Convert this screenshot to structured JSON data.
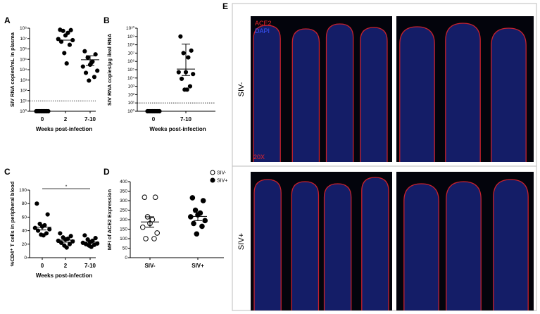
{
  "panels": {
    "A": "A",
    "B": "B",
    "C": "C",
    "D": "D",
    "E": "E"
  },
  "chart_data": [
    {
      "id": "A",
      "type": "scatter",
      "ylabel": "SIV RNA copies/mL in plasma",
      "xlabel": "Weeks post-infection",
      "yscale": "log",
      "ylim_exp": [
        0,
        8
      ],
      "ytick_labels": [
        "10⁰",
        "10¹",
        "10²",
        "10³",
        "10⁴",
        "10⁵",
        "10⁶",
        "10⁷",
        "10⁸"
      ],
      "categories": [
        "0",
        "2",
        "7-10"
      ],
      "series": [
        {
          "category": "0",
          "values": [
            1,
            1,
            1,
            1,
            1,
            1,
            1,
            1,
            1,
            1,
            1
          ],
          "mean": 1
        },
        {
          "category": "2",
          "values": [
            70000000.0,
            65000000.0,
            55000000.0,
            35000000.0,
            20000000.0,
            9000000.0,
            7000000.0,
            5000000.0,
            2500000.0,
            400000.0,
            40000.0
          ],
          "mean": 7000000.0
        },
        {
          "category": "7-10",
          "values": [
            600000.0,
            300000.0,
            150000.0,
            60000.0,
            30000.0,
            20000.0,
            8000.0,
            5000.0,
            2000.0,
            900.0,
            45000.0
          ],
          "mean": 90000.0,
          "sem": [
            25000.0,
            220000.0
          ]
        }
      ],
      "detection_limit": 10
    },
    {
      "id": "B",
      "type": "scatter",
      "ylabel": "SIV RNA copies/μg ileal RNA",
      "xlabel": "Weeks post-infection",
      "yscale": "log",
      "ylim_exp": [
        0,
        10
      ],
      "ytick_labels": [
        "10⁰",
        "10¹",
        "10²",
        "10³",
        "10⁴",
        "10⁵",
        "10⁶",
        "10⁷",
        "10⁸",
        "10⁹",
        "10¹⁰"
      ],
      "categories": [
        "0",
        "7-10"
      ],
      "series": [
        {
          "category": "0",
          "values": [
            1,
            1,
            1,
            1,
            1,
            1,
            1,
            1,
            1,
            1,
            1
          ],
          "mean": 1
        },
        {
          "category": "7-10",
          "values": [
            1000000000.0,
            20000000.0,
            10000000.0,
            3000000.0,
            50000.0,
            50000.0,
            30000.0,
            8000.0,
            1000.0,
            400.0,
            400.0
          ],
          "mean": 120000.0,
          "sem": [
            20000.0,
            120000000.0
          ]
        }
      ],
      "detection_limit": 10
    },
    {
      "id": "C",
      "type": "scatter",
      "ylabel": "%CD4⁺ T cells in peripheral blood",
      "xlabel": "Weeks post-infection",
      "ylim": [
        0,
        100
      ],
      "yticks": [
        0,
        20,
        40,
        60,
        80,
        100
      ],
      "categories": [
        "0",
        "2",
        "7-10"
      ],
      "series": [
        {
          "category": "0",
          "values": [
            80,
            64,
            50,
            48,
            46,
            44,
            42,
            40,
            36,
            34,
            33
          ],
          "mean": 45,
          "sem": [
            41,
            49
          ]
        },
        {
          "category": "2",
          "values": [
            36,
            32,
            30,
            28,
            27,
            25,
            24,
            22,
            20,
            18,
            15
          ],
          "mean": 26,
          "sem": [
            23,
            29
          ]
        },
        {
          "category": "7-10",
          "values": [
            33,
            29,
            27,
            25,
            23,
            22,
            21,
            20,
            19,
            18,
            16
          ],
          "mean": 23,
          "sem": [
            21,
            26
          ]
        }
      ],
      "annotation": "*"
    },
    {
      "id": "D",
      "type": "scatter",
      "ylabel": "MFI of ACE2 Expression",
      "ylim": [
        0,
        400
      ],
      "yticks": [
        0,
        50,
        100,
        150,
        200,
        250,
        300,
        350,
        400
      ],
      "categories": [
        "SIV-",
        "SIV+"
      ],
      "legend": [
        "SIV-",
        "SIV+"
      ],
      "series": [
        {
          "category": "SIV-",
          "filled": false,
          "values": [
            318,
            318,
            215,
            200,
            180,
            160,
            130,
            100,
            100
          ],
          "mean": 188,
          "sem": [
            160,
            215
          ]
        },
        {
          "category": "SIV+",
          "filled": true,
          "values": [
            315,
            300,
            250,
            235,
            225,
            215,
            195,
            180,
            165,
            125
          ],
          "mean": 217,
          "sem": [
            195,
            238
          ]
        }
      ]
    }
  ],
  "micrographs": {
    "legend_ace2": "ACE2",
    "legend_dapi": "DAPI",
    "magnification": "20X",
    "row_siv_neg": "SIV-",
    "row_siv_pos": "SIV+",
    "color_ace2": "#e8252b",
    "color_dapi": "#2b3bd6"
  }
}
